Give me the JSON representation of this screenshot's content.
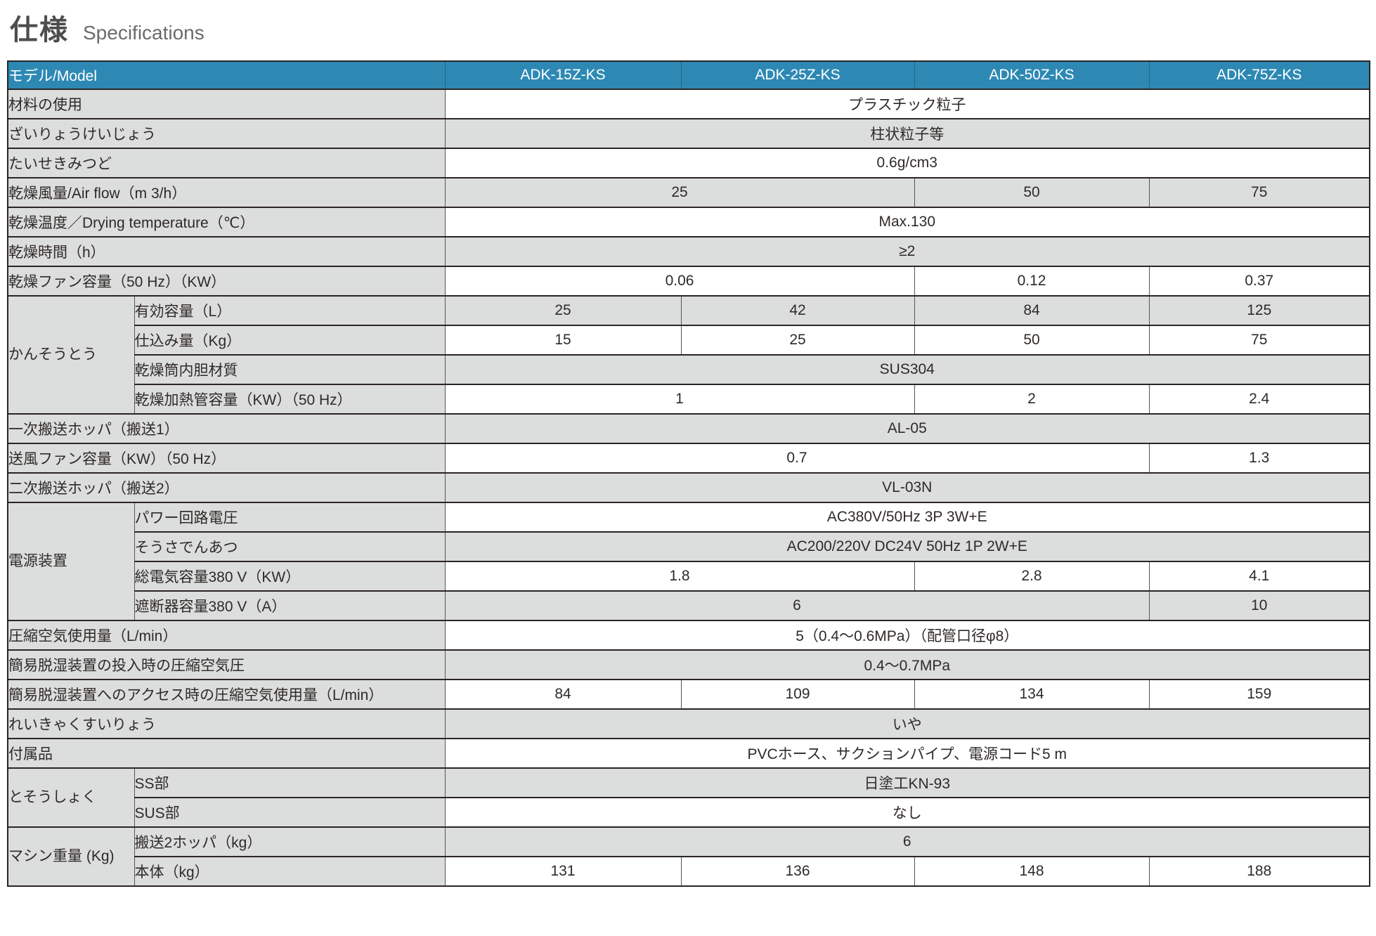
{
  "page": {
    "title_jp": "仕様",
    "title_en": "Specifications"
  },
  "colors": {
    "header_bg": "#2d89b4",
    "header_text": "#ffffff",
    "stripe_gray": "#dcdddd",
    "stripe_white": "#ffffff",
    "grid_line": "#2b2523",
    "body_text": "#2f2a28"
  },
  "table": {
    "header": {
      "model_label": "モデル/Model",
      "models": [
        "ADK-15Z-KS",
        "ADK-25Z-KS",
        "ADK-50Z-KS",
        "ADK-75Z-KS"
      ]
    },
    "rows": [
      {
        "label": "材料の使用",
        "cells": [
          {
            "text": "プラスチック粒子",
            "span": 4
          }
        ]
      },
      {
        "label": "ざいりょうけいじょう",
        "cells": [
          {
            "text": "柱状粒子等",
            "span": 4
          }
        ]
      },
      {
        "label": "たいせきみつど",
        "cells": [
          {
            "text": "0.6g/cm3",
            "span": 4
          }
        ]
      },
      {
        "label": "乾燥風量/Air flow（m 3/h）",
        "cells": [
          {
            "text": "25",
            "span": 2
          },
          {
            "text": "50",
            "span": 1
          },
          {
            "text": "75",
            "span": 1
          }
        ]
      },
      {
        "label": "乾燥温度／Drying temperature（℃）",
        "cells": [
          {
            "text": "Max.130",
            "span": 4
          }
        ]
      },
      {
        "label": "乾燥時間（h）",
        "cells": [
          {
            "text": "≥2",
            "span": 4
          }
        ]
      },
      {
        "label": "乾燥ファン容量（50 Hz）（KW）",
        "cells": [
          {
            "text": "0.06",
            "span": 2
          },
          {
            "text": "0.12",
            "span": 1
          },
          {
            "text": "0.37",
            "span": 1
          }
        ]
      },
      {
        "group": {
          "text": "かんそうとう",
          "rows": 4
        },
        "label": "有効容量（L）",
        "cells": [
          {
            "text": "25",
            "span": 1
          },
          {
            "text": "42",
            "span": 1
          },
          {
            "text": "84",
            "span": 1
          },
          {
            "text": "125",
            "span": 1
          }
        ]
      },
      {
        "sub": true,
        "label": "仕込み量（Kg）",
        "cells": [
          {
            "text": "15",
            "span": 1
          },
          {
            "text": "25",
            "span": 1
          },
          {
            "text": "50",
            "span": 1
          },
          {
            "text": "75",
            "span": 1
          }
        ]
      },
      {
        "sub": true,
        "label": "乾燥筒内胆材質",
        "cells": [
          {
            "text": "SUS304",
            "span": 4
          }
        ]
      },
      {
        "sub": true,
        "label": "乾燥加熱管容量（KW）（50 Hz）",
        "cells": [
          {
            "text": "1",
            "span": 2
          },
          {
            "text": "2",
            "span": 1
          },
          {
            "text": "2.4",
            "span": 1
          }
        ]
      },
      {
        "label": "一次搬送ホッパ（搬送1）",
        "cells": [
          {
            "text": "AL-05",
            "span": 4
          }
        ]
      },
      {
        "label": "送風ファン容量（KW）（50 Hz）",
        "cells": [
          {
            "text": "0.7",
            "span": 3
          },
          {
            "text": "1.3",
            "span": 1
          }
        ]
      },
      {
        "label": "二次搬送ホッパ（搬送2）",
        "cells": [
          {
            "text": "VL-03N",
            "span": 4
          }
        ]
      },
      {
        "group": {
          "text": "電源装置",
          "rows": 4
        },
        "label": "パワー回路電圧",
        "cells": [
          {
            "text": "AC380V/50Hz 3P 3W+E",
            "span": 4
          }
        ]
      },
      {
        "sub": true,
        "label": "そうさでんあつ",
        "cells": [
          {
            "text": "AC200/220V DC24V 50Hz 1P 2W+E",
            "span": 4
          }
        ]
      },
      {
        "sub": true,
        "label": "総電気容量380 V（KW）",
        "cells": [
          {
            "text": "1.8",
            "span": 2
          },
          {
            "text": "2.8",
            "span": 1
          },
          {
            "text": "4.1",
            "span": 1
          }
        ]
      },
      {
        "sub": true,
        "label": "遮断器容量380 V（A）",
        "cells": [
          {
            "text": "6",
            "span": 3
          },
          {
            "text": "10",
            "span": 1
          }
        ]
      },
      {
        "label": "圧縮空気使用量（L/min）",
        "cells": [
          {
            "text": "5（0.4〜0.6MPa）（配管口径φ8）",
            "span": 4
          }
        ]
      },
      {
        "label": "簡易脱湿装置の投入時の圧縮空気圧",
        "cells": [
          {
            "text": "0.4〜0.7MPa",
            "span": 4
          }
        ]
      },
      {
        "label": "簡易脱湿装置へのアクセス時の圧縮空気使用量（L/min）",
        "cells": [
          {
            "text": "84",
            "span": 1
          },
          {
            "text": "109",
            "span": 1
          },
          {
            "text": "134",
            "span": 1
          },
          {
            "text": "159",
            "span": 1
          }
        ]
      },
      {
        "label": "れいきゃくすいりょう",
        "cells": [
          {
            "text": "いや",
            "span": 4
          }
        ]
      },
      {
        "label": "付属品",
        "cells": [
          {
            "text": "PVCホース、サクションパイプ、電源コード5 m",
            "span": 4
          }
        ]
      },
      {
        "group": {
          "text": "とそうしょく",
          "rows": 2
        },
        "label": "SS部",
        "cells": [
          {
            "text": "日塗工KN-93",
            "span": 4
          }
        ]
      },
      {
        "sub": true,
        "label": "SUS部",
        "cells": [
          {
            "text": "なし",
            "span": 4
          }
        ]
      },
      {
        "group": {
          "text": "マシン重量\n(Kg)",
          "rows": 2
        },
        "label": "搬送2ホッパ（kg）",
        "cells": [
          {
            "text": "6",
            "span": 4
          }
        ]
      },
      {
        "sub": true,
        "label": "本体（kg）",
        "cells": [
          {
            "text": "131",
            "span": 1
          },
          {
            "text": "136",
            "span": 1
          },
          {
            "text": "148",
            "span": 1
          },
          {
            "text": "188",
            "span": 1
          }
        ]
      }
    ]
  }
}
